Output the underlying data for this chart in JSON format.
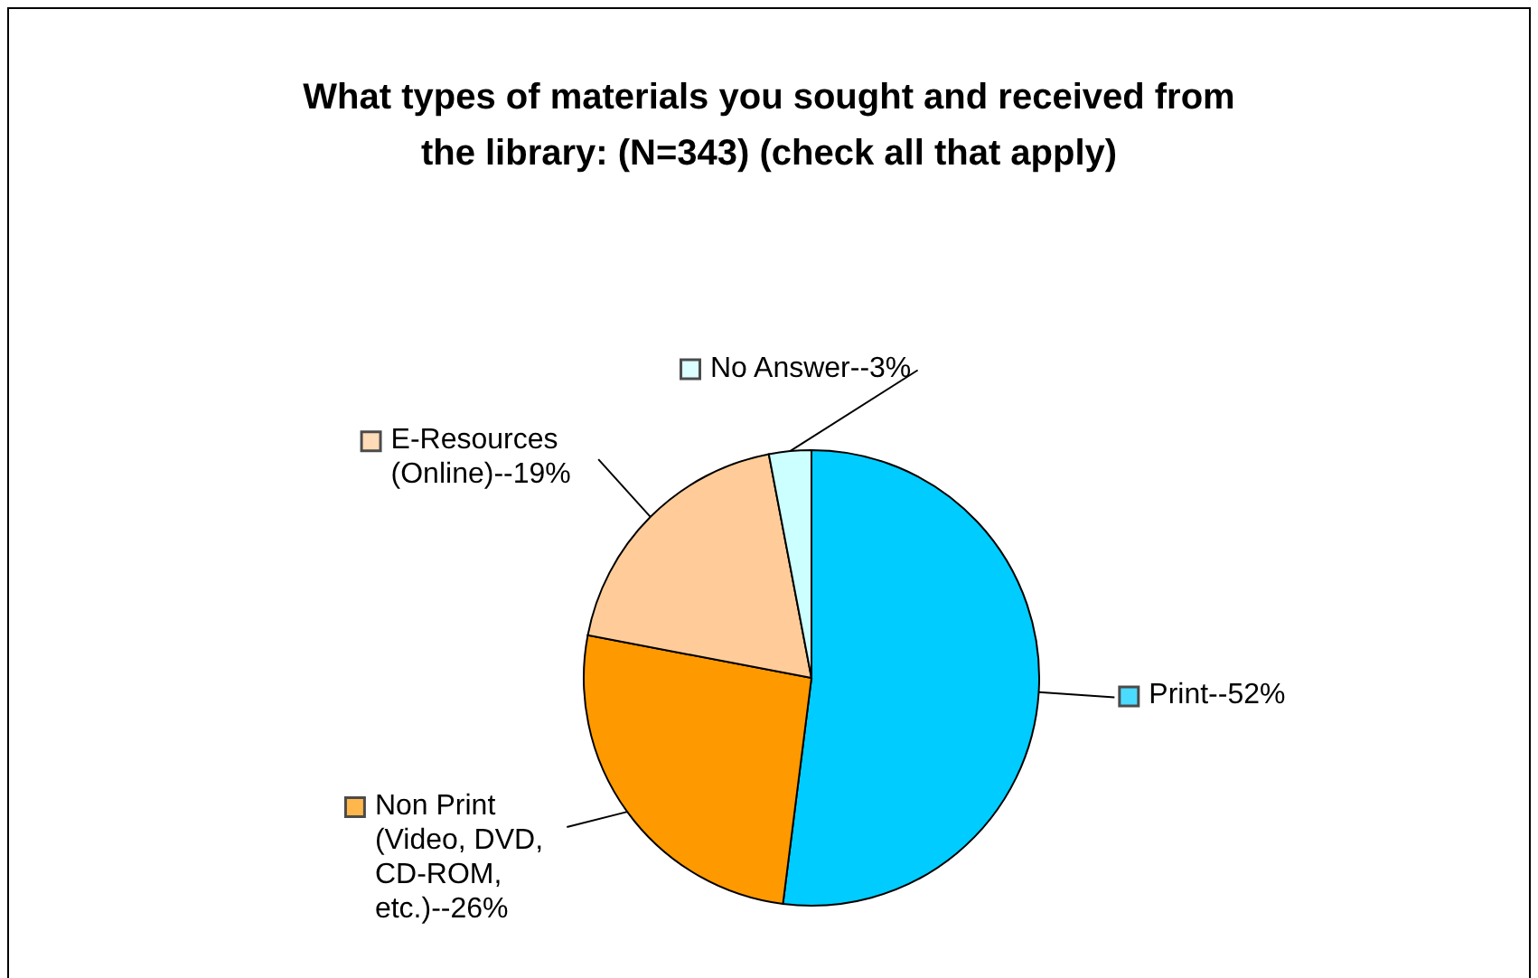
{
  "chart_data": {
    "type": "pie",
    "title": "What types of materials you sought and received from the library: (N=343) (check all that apply)",
    "categories": [
      "Print--52%",
      "Non Print (Video, DVD, CD-ROM, etc.)--26%",
      "E-Resources (Online)--19%",
      "No Answer--3%"
    ],
    "values": [
      52,
      26,
      19,
      3
    ],
    "colors": [
      "#00ccff",
      "#ff9900",
      "#ffcc99",
      "#ccffff"
    ],
    "legend": "left"
  }
}
